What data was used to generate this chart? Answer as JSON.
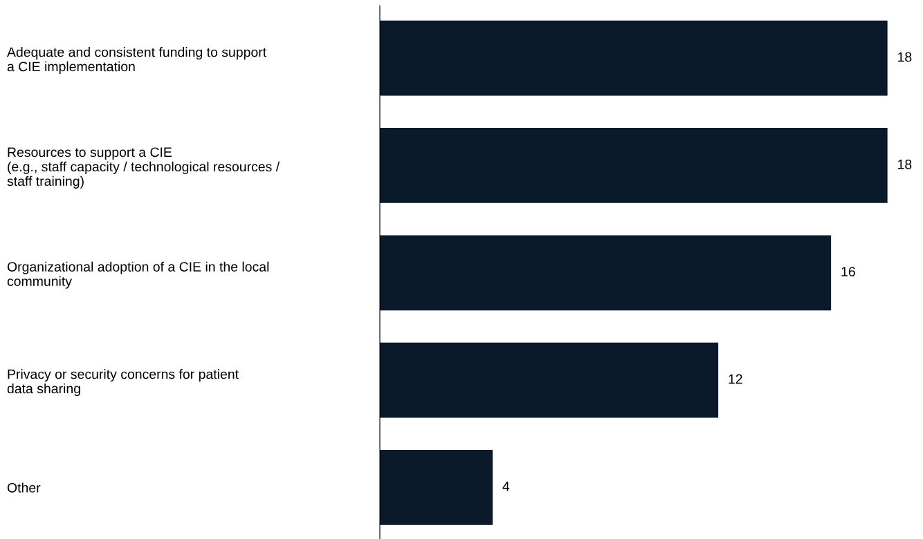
{
  "chart_data": {
    "type": "bar",
    "orientation": "horizontal",
    "categories": [
      "Adequate and consistent funding to support\na CIE implementation",
      "Resources to support a CIE\n(e.g., staff capacity / technological resources /\nstaff training)",
      "Organizational adoption of a CIE in the local\ncommunity",
      "Privacy or security concerns for patient\ndata sharing",
      "Other"
    ],
    "values": [
      18,
      18,
      16,
      12,
      4
    ],
    "color": "#0a1a2a",
    "data_labels": true,
    "grid": false,
    "legend": false
  }
}
